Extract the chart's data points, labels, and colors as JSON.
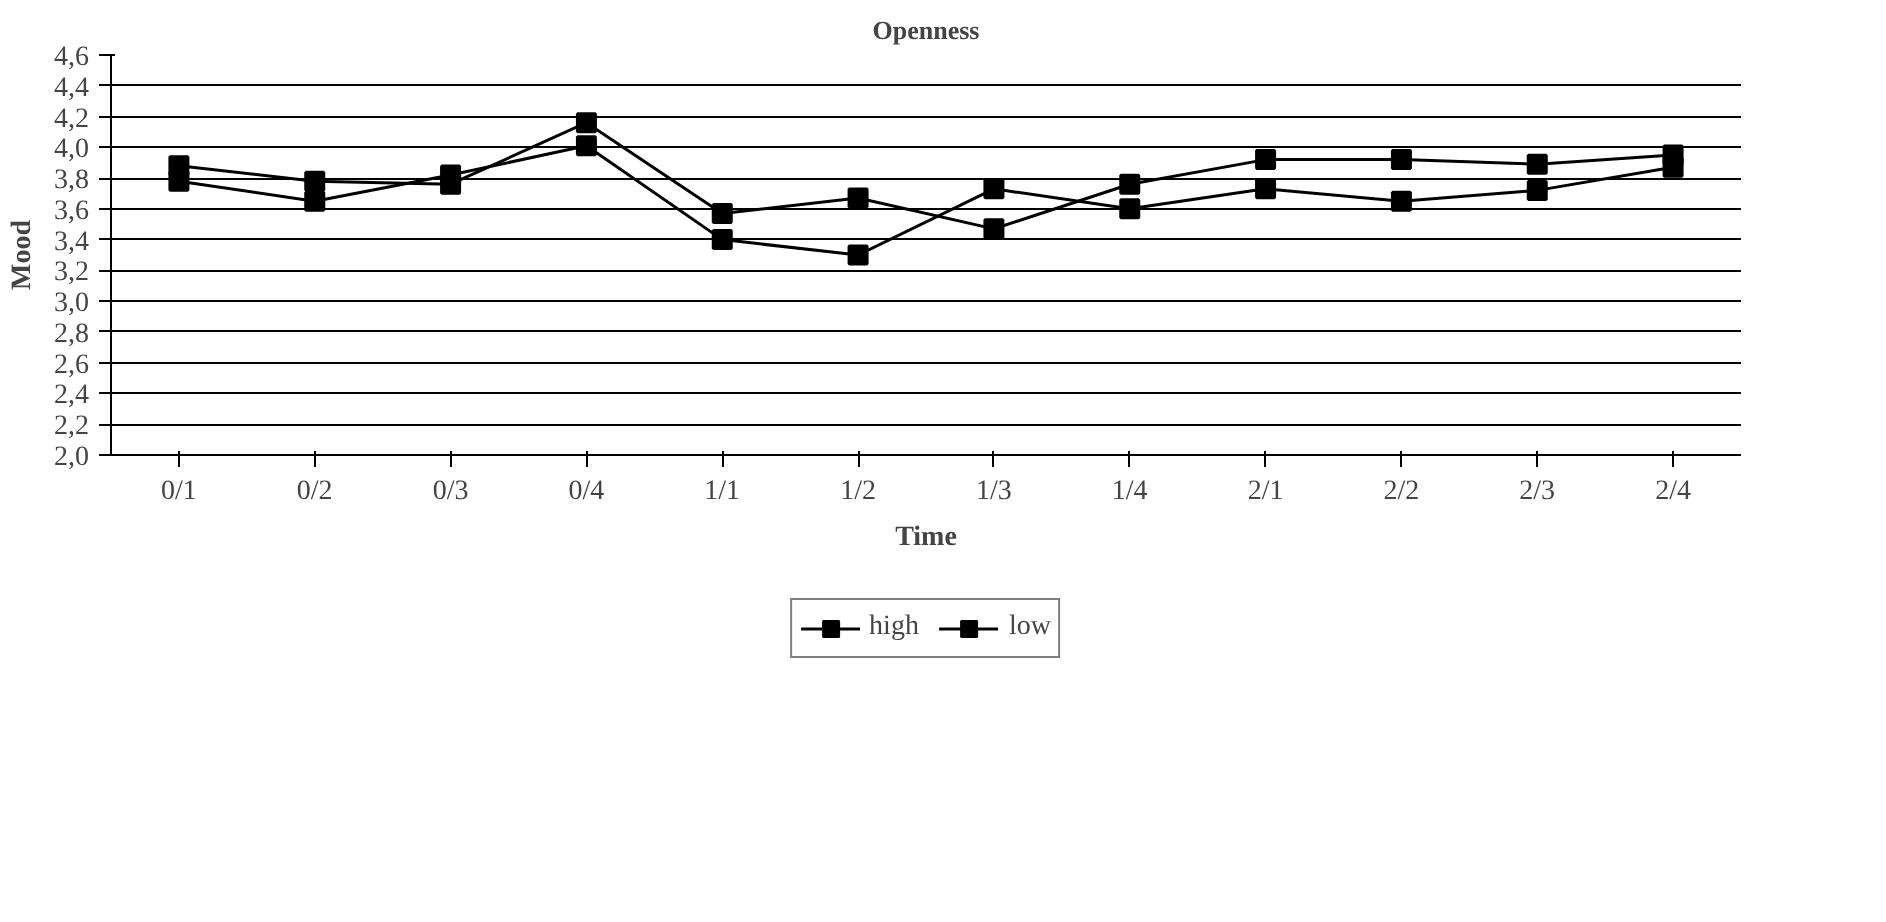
{
  "chart_data": {
    "type": "line",
    "title": "Openness",
    "xlabel": "Time",
    "ylabel": "Mood",
    "categories": [
      "0/1",
      "0/2",
      "0/3",
      "0/4",
      "1/1",
      "1/2",
      "1/3",
      "1/4",
      "2/1",
      "2/2",
      "2/3",
      "2/4"
    ],
    "series": [
      {
        "name": "high",
        "color": "#000000",
        "values": [
          3.88,
          3.78,
          3.76,
          4.16,
          3.57,
          3.67,
          3.47,
          3.76,
          3.92,
          3.92,
          3.89,
          3.95
        ]
      },
      {
        "name": "low",
        "color": "#000000",
        "values": [
          3.78,
          3.65,
          3.82,
          4.01,
          3.4,
          3.3,
          3.73,
          3.6,
          3.73,
          3.65,
          3.72,
          3.87
        ]
      }
    ],
    "ylim": [
      2.0,
      4.6
    ],
    "yticks": [
      {
        "value": 2.0,
        "label": "2,0"
      },
      {
        "value": 2.2,
        "label": "2,2"
      },
      {
        "value": 2.4,
        "label": "2,4"
      },
      {
        "value": 2.6,
        "label": "2,6"
      },
      {
        "value": 2.8,
        "label": "2,8"
      },
      {
        "value": 3.0,
        "label": "3,0"
      },
      {
        "value": 3.2,
        "label": "3,2"
      },
      {
        "value": 3.4,
        "label": "3,4"
      },
      {
        "value": 3.6,
        "label": "3,6"
      },
      {
        "value": 3.8,
        "label": "3,8"
      },
      {
        "value": 4.0,
        "label": "4,0"
      },
      {
        "value": 4.2,
        "label": "4,2"
      },
      {
        "value": 4.4,
        "label": "4,4"
      },
      {
        "value": 4.6,
        "label": "4,6"
      }
    ],
    "grid": "y",
    "legend": "bottom",
    "marker": "square",
    "line_style": "solid"
  }
}
